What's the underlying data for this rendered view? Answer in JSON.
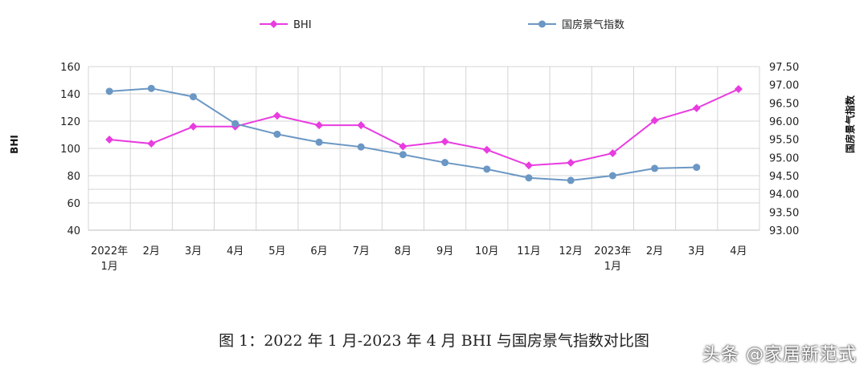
{
  "chart_data": {
    "type": "line",
    "categories": [
      [
        "2022年",
        "1月"
      ],
      [
        "2月"
      ],
      [
        "3月"
      ],
      [
        "4月"
      ],
      [
        "5月"
      ],
      [
        "6月"
      ],
      [
        "7月"
      ],
      [
        "8月"
      ],
      [
        "9月"
      ],
      [
        "10月"
      ],
      [
        "11月"
      ],
      [
        "12月"
      ],
      [
        "2023年",
        "1月"
      ],
      [
        "2月"
      ],
      [
        "3月"
      ],
      [
        "4月"
      ]
    ],
    "series": [
      {
        "name": "BHI",
        "axis": "left",
        "color": "#e83ce0",
        "marker": "diamond",
        "values": [
          106.5,
          103.5,
          116,
          116,
          124,
          117,
          117,
          101.5,
          105,
          99,
          87.5,
          89.5,
          96.5,
          120.5,
          129.5,
          143.5
        ]
      },
      {
        "name": "国房景气指数",
        "axis": "right",
        "color": "#6b97c4",
        "marker": "circle",
        "values": [
          96.82,
          96.9,
          96.67,
          95.93,
          95.64,
          95.42,
          95.29,
          95.08,
          94.86,
          94.68,
          94.44,
          94.37,
          94.5,
          94.7,
          94.73,
          null
        ]
      }
    ],
    "y_left": {
      "label": "BHI",
      "min": 40,
      "max": 160,
      "ticks": [
        40,
        60,
        80,
        100,
        120,
        140,
        160
      ]
    },
    "y_right": {
      "label": "国房景气指数",
      "min": 93.0,
      "max": 97.5,
      "ticks": [
        "93.00",
        "93.50",
        "94.00",
        "94.50",
        "95.00",
        "95.50",
        "96.00",
        "96.50",
        "97.00",
        "97.50"
      ]
    },
    "grid": true,
    "legend_position": "top"
  },
  "caption": "图 1：2022 年 1 月-2023 年 4 月 BHI 与国房景气指数对比图",
  "watermark": "头条 @家居新范式"
}
